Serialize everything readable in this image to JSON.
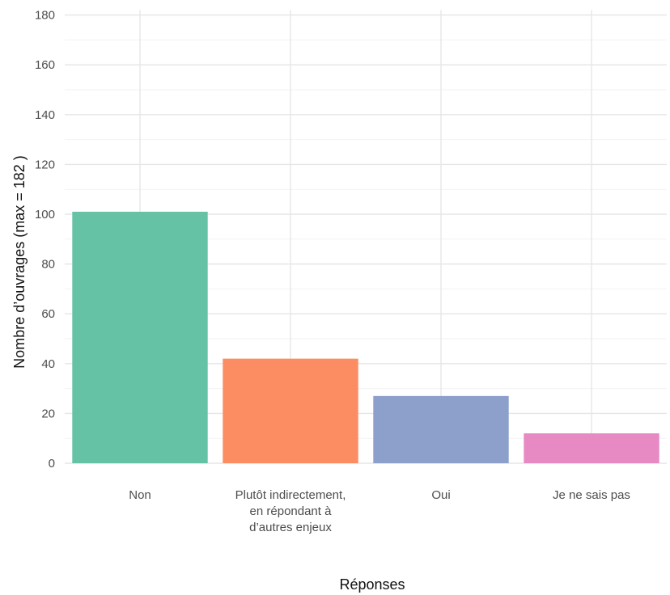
{
  "chart_data": {
    "type": "bar",
    "title": "",
    "xlabel": "Réponses",
    "ylabel": "Nombre d’ouvrages (max = 182 )",
    "categories": [
      "Non",
      "Plutôt indirectement, en répondant à d’autres enjeux",
      "Oui",
      "Je ne sais pas"
    ],
    "category_lines": [
      [
        "Non"
      ],
      [
        "Plutôt indirectement,",
        "en répondant à",
        "d’autres enjeux"
      ],
      [
        "Oui"
      ],
      [
        "Je ne sais pas"
      ]
    ],
    "values": [
      101,
      42,
      27,
      12
    ],
    "colors": [
      "#66c2a5",
      "#fc8d62",
      "#8da0cb",
      "#e78ac3"
    ],
    "ylim": [
      0,
      182
    ],
    "y_ticks": [
      0,
      20,
      40,
      60,
      80,
      100,
      120,
      140,
      160,
      180
    ],
    "grid": true,
    "legend": "none"
  }
}
